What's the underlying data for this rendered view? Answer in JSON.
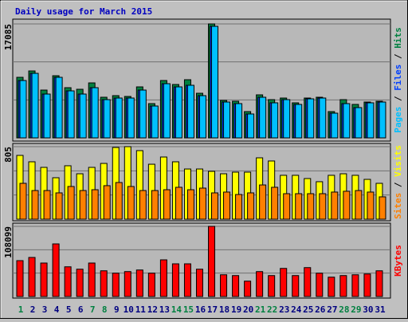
{
  "chart_data": [
    {
      "type": "bar",
      "title": "Daily usage for March 2015",
      "categories": [
        "1",
        "2",
        "3",
        "4",
        "5",
        "6",
        "7",
        "8",
        "9",
        "10",
        "11",
        "12",
        "13",
        "14",
        "15",
        "16",
        "17",
        "18",
        "19",
        "20",
        "21",
        "22",
        "23",
        "24",
        "25",
        "26",
        "27",
        "28",
        "29",
        "30",
        "31"
      ],
      "category_colors": [
        "#008040",
        "#000080",
        "#000080",
        "#000080",
        "#000080",
        "#000080",
        "#008040",
        "#008040",
        "#000080",
        "#000080",
        "#000080",
        "#000080",
        "#000080",
        "#008040",
        "#008040",
        "#000080",
        "#000080",
        "#000080",
        "#000080",
        "#000080",
        "#008040",
        "#008040",
        "#000080",
        "#000080",
        "#000080",
        "#000080",
        "#000080",
        "#008040",
        "#008040",
        "#000080",
        "#000080"
      ],
      "legend_separator": " / ",
      "ylim": [
        0,
        17085
      ],
      "yticks": [
        17085
      ],
      "series": [
        {
          "name": "Hits",
          "color": "#008040",
          "values": [
            9080,
            10036,
            7168,
            9319,
            7527,
            7288,
            8244,
            6093,
            6332,
            6213,
            7646,
            5137,
            8602,
            8005,
            8721,
            6690,
            17085,
            5615,
            5496,
            3943,
            6452,
            5735,
            5974,
            5257,
            5974,
            6093,
            3943,
            5735,
            5018,
            5376,
            5496
          ]
        },
        {
          "name": "Files",
          "color": "#0040ff",
          "values": [
            8600,
            9677,
            6571,
            9080,
            7049,
            6571,
            7527,
            5735,
            5974,
            5974,
            7168,
            4779,
            8124,
            7646,
            7885,
            6332,
            16727,
            5376,
            5137,
            3584,
            6093,
            5257,
            5735,
            5018,
            5854,
            5974,
            3704,
            5137,
            4540,
            5257,
            5376
          ]
        },
        {
          "name": "Pages",
          "color": "#00c0ff",
          "values": [
            8600,
            9677,
            6571,
            9080,
            7049,
            6571,
            7527,
            5735,
            5974,
            5974,
            7168,
            4779,
            8124,
            7646,
            7885,
            6332,
            16727,
            5376,
            5137,
            3584,
            6093,
            5257,
            5735,
            5018,
            5854,
            5974,
            3704,
            5137,
            4540,
            5257,
            5376
          ]
        }
      ]
    },
    {
      "type": "bar",
      "legend_separator": " / ",
      "ylim": [
        0,
        805
      ],
      "yticks": [
        805
      ],
      "series": [
        {
          "name": "Visits",
          "color": "#ffff00",
          "values": [
            708,
            637,
            575,
            460,
            593,
            504,
            575,
            619,
            796,
            805,
            761,
            610,
            690,
            637,
            557,
            557,
            531,
            504,
            522,
            522,
            681,
            646,
            487,
            487,
            451,
            416,
            487,
            504,
            487,
            442,
            398
          ]
        },
        {
          "name": "Sites",
          "color": "#ff8000",
          "values": [
            398,
            318,
            318,
            292,
            363,
            318,
            327,
            372,
            407,
            363,
            318,
            318,
            327,
            354,
            327,
            345,
            292,
            301,
            274,
            292,
            380,
            354,
            283,
            283,
            283,
            283,
            301,
            310,
            318,
            301,
            248
          ]
        }
      ]
    },
    {
      "type": "bar",
      "ylim": [
        0,
        108099
      ],
      "yticks": [
        108099
      ],
      "series": [
        {
          "name": "KBytes",
          "color": "#ff0000",
          "values": [
            55277,
            60190,
            51590,
            81074,
            45763,
            42078,
            51590,
            39622,
            35937,
            38394,
            40850,
            35937,
            56505,
            50362,
            50362,
            42078,
            108099,
            33480,
            32252,
            23653,
            38394,
            32252,
            43306,
            32252,
            44534,
            35937,
            29795,
            32252,
            33480,
            34709,
            39622
          ]
        }
      ]
    }
  ]
}
